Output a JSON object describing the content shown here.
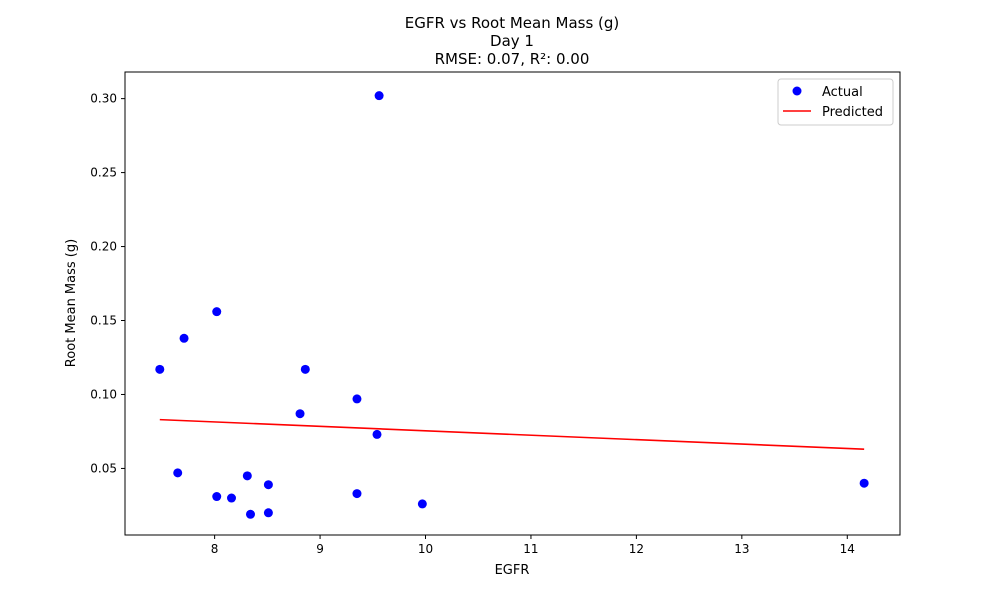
{
  "chart_data": {
    "type": "scatter",
    "title_lines": [
      "EGFR vs Root Mean Mass (g)",
      "Day 1",
      "RMSE: 0.07, R²: 0.00"
    ],
    "xlabel": "EGFR",
    "ylabel": "Root Mean Mass (g)",
    "xlim": [
      7.15,
      14.5
    ],
    "ylim": [
      0.005,
      0.318
    ],
    "xticks": [
      8,
      9,
      10,
      11,
      12,
      13,
      14
    ],
    "yticks": [
      0.05,
      0.1,
      0.15,
      0.2,
      0.25,
      0.3
    ],
    "xtick_labels": [
      "8",
      "9",
      "10",
      "11",
      "12",
      "13",
      "14"
    ],
    "ytick_labels": [
      "0.05",
      "0.10",
      "0.15",
      "0.20",
      "0.25",
      "0.30"
    ],
    "grid": false,
    "legend_position": "top-right",
    "legend": [
      "Actual",
      "Predicted"
    ],
    "series": [
      {
        "name": "Actual",
        "type": "scatter",
        "color": "#0000ff",
        "points": [
          {
            "x": 7.48,
            "y": 0.117
          },
          {
            "x": 7.65,
            "y": 0.047
          },
          {
            "x": 7.71,
            "y": 0.138
          },
          {
            "x": 8.02,
            "y": 0.156
          },
          {
            "x": 8.02,
            "y": 0.031
          },
          {
            "x": 8.16,
            "y": 0.03
          },
          {
            "x": 8.31,
            "y": 0.045
          },
          {
            "x": 8.34,
            "y": 0.019
          },
          {
            "x": 8.51,
            "y": 0.039
          },
          {
            "x": 8.51,
            "y": 0.02
          },
          {
            "x": 8.81,
            "y": 0.087
          },
          {
            "x": 8.86,
            "y": 0.117
          },
          {
            "x": 9.35,
            "y": 0.097
          },
          {
            "x": 9.35,
            "y": 0.033
          },
          {
            "x": 9.54,
            "y": 0.073
          },
          {
            "x": 9.56,
            "y": 0.302
          },
          {
            "x": 9.97,
            "y": 0.026
          },
          {
            "x": 14.16,
            "y": 0.04
          }
        ]
      },
      {
        "name": "Predicted",
        "type": "line",
        "color": "#ff0000",
        "points": [
          {
            "x": 7.48,
            "y": 0.083
          },
          {
            "x": 14.16,
            "y": 0.063
          }
        ]
      }
    ]
  }
}
